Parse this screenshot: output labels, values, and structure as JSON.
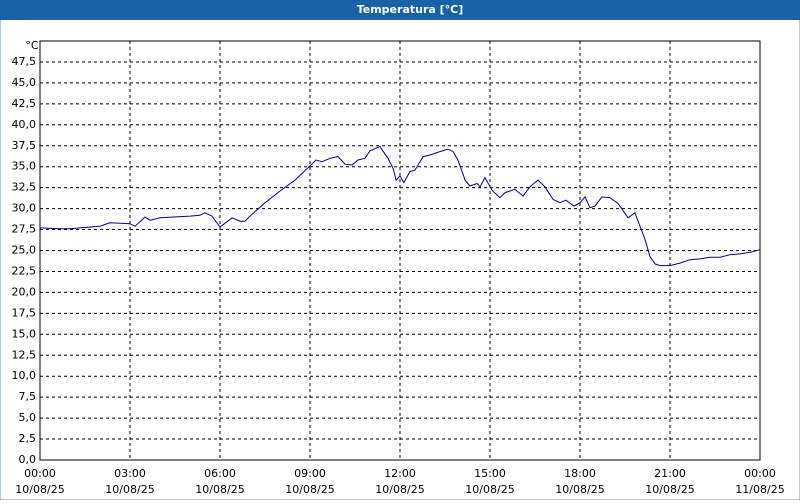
{
  "chart_data": {
    "type": "line",
    "title": "Temperatura [°C]",
    "y_unit": "°C",
    "series": [
      {
        "name": "Temperatura",
        "color": "#00008b",
        "x": [
          0,
          0.67,
          1,
          1.67,
          2,
          2.33,
          3,
          3.17,
          3.5,
          3.67,
          4,
          5,
          5.33,
          5.5,
          5.73,
          6,
          6.4,
          6.67,
          6.83,
          7,
          7.5,
          8,
          8.5,
          9,
          9.2,
          9.4,
          9.67,
          9.93,
          10.17,
          10.4,
          10.6,
          10.83,
          11,
          11.33,
          11.6,
          11.77,
          11.87,
          12,
          12.13,
          12.33,
          12.5,
          12.77,
          13,
          13.33,
          13.6,
          13.77,
          13.93,
          14.17,
          14.33,
          14.57,
          14.67,
          14.83,
          15.07,
          15.33,
          15.5,
          15.83,
          16.1,
          16.33,
          16.6,
          16.83,
          17.1,
          17.33,
          17.53,
          17.8,
          18,
          18.17,
          18.33,
          18.5,
          18.73,
          19,
          19.27,
          19.6,
          19.83,
          20.17,
          20.33,
          20.5,
          20.67,
          21,
          21.33,
          21.67,
          22,
          22.33,
          22.67,
          23,
          23.33,
          23.67,
          24
        ],
        "values": [
          27.7,
          27.6,
          27.6,
          27.8,
          27.9,
          28.3,
          28.2,
          27.9,
          29.0,
          28.6,
          28.9,
          29.1,
          29.2,
          29.5,
          29.1,
          27.8,
          28.9,
          28.5,
          28.5,
          29.1,
          30.7,
          32.1,
          33.4,
          35.1,
          35.8,
          35.6,
          36.0,
          36.2,
          35.3,
          35.2,
          35.8,
          36.0,
          36.9,
          37.4,
          36.0,
          34.8,
          33.4,
          33.9,
          33.1,
          34.4,
          34.6,
          36.2,
          36.4,
          36.8,
          37.1,
          36.8,
          35.8,
          33.4,
          32.7,
          33.0,
          32.6,
          33.7,
          32.2,
          31.3,
          31.9,
          32.3,
          31.5,
          32.6,
          33.4,
          32.6,
          31.1,
          30.7,
          31.0,
          30.3,
          30.7,
          31.4,
          30.1,
          30.3,
          31.4,
          31.3,
          30.6,
          28.9,
          29.5,
          26.3,
          24.3,
          23.4,
          23.2,
          23.2,
          23.5,
          23.9,
          24.0,
          24.2,
          24.2,
          24.5,
          24.6,
          24.8,
          25.1
        ]
      }
    ],
    "xlim": [
      0,
      24
    ],
    "ylim": [
      0,
      50
    ],
    "xticks": [
      {
        "value": 0,
        "label": "00:00",
        "date": "10/08/25"
      },
      {
        "value": 3,
        "label": "03:00",
        "date": "10/08/25"
      },
      {
        "value": 6,
        "label": "06:00",
        "date": "10/08/25"
      },
      {
        "value": 9,
        "label": "09:00",
        "date": "10/08/25"
      },
      {
        "value": 12,
        "label": "12:00",
        "date": "10/08/25"
      },
      {
        "value": 15,
        "label": "15:00",
        "date": "10/08/25"
      },
      {
        "value": 18,
        "label": "18:00",
        "date": "10/08/25"
      },
      {
        "value": 21,
        "label": "21:00",
        "date": "10/08/25"
      },
      {
        "value": 24,
        "label": "00:00",
        "date": "11/08/25"
      }
    ],
    "yticks": [
      {
        "value": 0,
        "label": "0,0"
      },
      {
        "value": 2.5,
        "label": "2,5"
      },
      {
        "value": 5,
        "label": "5,0"
      },
      {
        "value": 7.5,
        "label": "7,5"
      },
      {
        "value": 10,
        "label": "10,0"
      },
      {
        "value": 12.5,
        "label": "12,5"
      },
      {
        "value": 15,
        "label": "15,0"
      },
      {
        "value": 17.5,
        "label": "17,5"
      },
      {
        "value": 20,
        "label": "20,0"
      },
      {
        "value": 22.5,
        "label": "22,5"
      },
      {
        "value": 25,
        "label": "25,0"
      },
      {
        "value": 27.5,
        "label": "27,5"
      },
      {
        "value": 30,
        "label": "30,0"
      },
      {
        "value": 32.5,
        "label": "32,5"
      },
      {
        "value": 35,
        "label": "35,0"
      },
      {
        "value": 37.5,
        "label": "37,5"
      },
      {
        "value": 40,
        "label": "40,0"
      },
      {
        "value": 42.5,
        "label": "42,5"
      },
      {
        "value": 45,
        "label": "45,0"
      },
      {
        "value": 47.5,
        "label": "47,5"
      }
    ],
    "grid": true
  }
}
